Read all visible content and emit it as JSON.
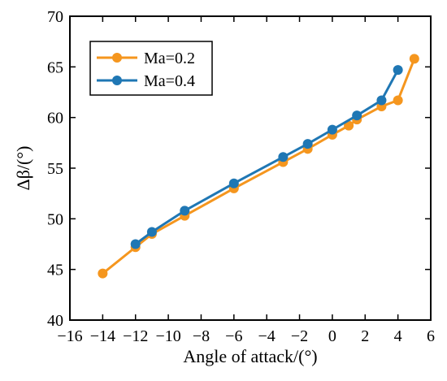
{
  "chart_data": {
    "type": "line",
    "xlabel": "Angle of attack/(°)",
    "ylabel": "Δβ/(°)",
    "xlim": [
      -16,
      6
    ],
    "ylim": [
      40,
      70
    ],
    "xticks": [
      -16,
      -14,
      -12,
      -10,
      -8,
      -6,
      -4,
      -2,
      0,
      2,
      4,
      6
    ],
    "yticks": [
      40,
      45,
      50,
      55,
      60,
      65,
      70
    ],
    "grid": false,
    "legend_position": "top-left",
    "series": [
      {
        "name": "Ma=0.2",
        "color": "#f5961e",
        "x": [
          -14,
          -12,
          -11,
          -9,
          -6,
          -3,
          -1.5,
          0,
          1,
          1.5,
          3,
          4,
          5
        ],
        "y": [
          44.6,
          47.2,
          48.5,
          50.3,
          53.0,
          55.6,
          56.9,
          58.3,
          59.2,
          59.8,
          61.1,
          61.7,
          65.8
        ]
      },
      {
        "name": "Ma=0.4",
        "color": "#1f77b4",
        "x": [
          -12,
          -11,
          -9,
          -6,
          -3,
          -1.5,
          0,
          1.5,
          3,
          4
        ],
        "y": [
          47.5,
          48.7,
          50.8,
          53.5,
          56.1,
          57.4,
          58.8,
          60.2,
          61.7,
          64.7
        ]
      }
    ]
  }
}
